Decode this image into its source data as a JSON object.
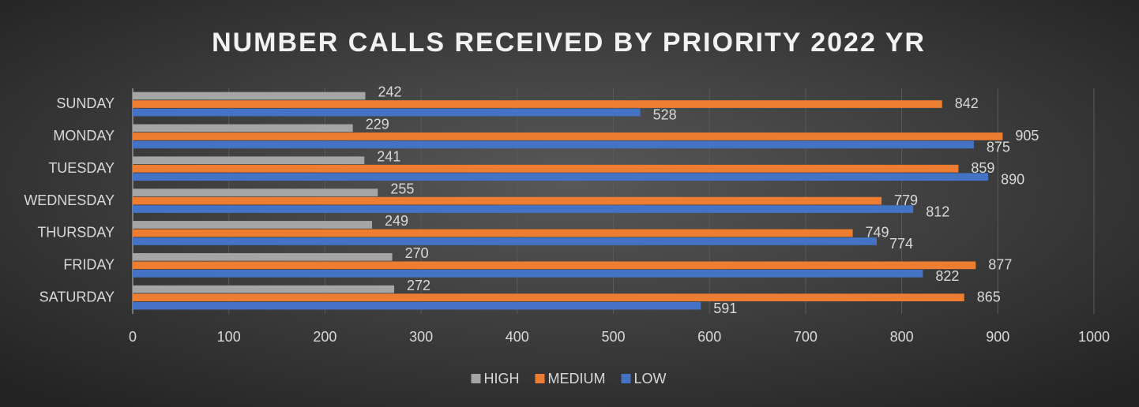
{
  "chart_data": {
    "type": "bar",
    "orientation": "horizontal",
    "title": "NUMBER CALLS RECEIVED BY PRIORITY 2022 YR",
    "categories": [
      "SUNDAY",
      "MONDAY",
      "TUESDAY",
      "WEDNESDAY",
      "THURSDAY",
      "FRIDAY",
      "SATURDAY"
    ],
    "series": [
      {
        "name": "HIGH",
        "color": "#a5a5a5",
        "values": [
          242,
          229,
          241,
          255,
          249,
          270,
          272
        ]
      },
      {
        "name": "MEDIUM",
        "color": "#ed7d31",
        "values": [
          842,
          905,
          859,
          779,
          749,
          877,
          865
        ]
      },
      {
        "name": "LOW",
        "color": "#4472c4",
        "values": [
          528,
          875,
          890,
          812,
          774,
          822,
          591
        ]
      }
    ],
    "xlim": [
      0,
      1000
    ],
    "xticks": [
      0,
      100,
      200,
      300,
      400,
      500,
      600,
      700,
      800,
      900,
      1000
    ],
    "grid": true,
    "legend": "bottom"
  }
}
